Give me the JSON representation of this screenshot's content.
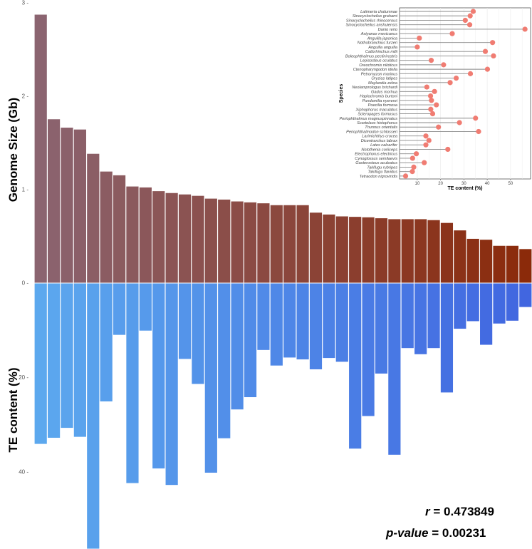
{
  "chart_data": {
    "type": "bar",
    "title": "",
    "top_panel": {
      "ylabel": "Genome Size (Gb)",
      "ylim": [
        0,
        3
      ],
      "yticks": [
        "0",
        "1",
        "2",
        "3"
      ],
      "color_start": "#8B6470",
      "color_end": "#8B2A0A"
    },
    "bottom_panel": {
      "ylabel": "TE content (%)",
      "ylim": [
        0,
        57
      ],
      "yticks": [
        "0",
        "20",
        "40"
      ],
      "color_start": "#5CA8EE",
      "color_end": "#4166E0"
    },
    "categories": [
      "Latimeria chalumnae",
      "Sinocyclocheilus grahami",
      "Sinocyclocheilus rhinocerous",
      "Sinocyclocheilus anshuiensis",
      "Danio rerio",
      "Astyanax mexicanus",
      "Anguilla japonica",
      "Nothobranchius furzeri",
      "Anguilla anguilla",
      "Callorhinchus milii",
      "Boleophthalmus pectinirostris",
      "Lepisosteus oculatus",
      "Oreochromis niloticus",
      "Ctenopharyngodon idella",
      "Petromyzon marinus",
      "Oryzias latipes",
      "Maylandia zebra",
      "Neolamprologus brichardi",
      "Gadus morhua",
      "Haplochromis burtoni",
      "Pundamilia nyererei",
      "Poecilia formosa",
      "Xiphophorus maculatus",
      "Scleropages formosus",
      "Periophthalmus magnuspinnatus",
      "Scartelaos histophorus",
      "Thunnus orientalis",
      "Periophthalmodon schlosseri",
      "Larimichthys crocea",
      "Dicentrarchus labrax",
      "Lates calcarifer",
      "Notothenia coriiceps",
      "Electrophorus electricus",
      "Cynoglossus semilaevis",
      "Gasterosteus aculeatus",
      "Takifugu rubripes",
      "Takifugu flavidus",
      "Tetraodon nigroviridis"
    ],
    "series": [
      {
        "name": "Genome Size (Gb)",
        "values": [
          2.87,
          1.75,
          1.66,
          1.64,
          1.38,
          1.19,
          1.15,
          1.03,
          1.02,
          0.98,
          0.96,
          0.945,
          0.93,
          0.9,
          0.89,
          0.87,
          0.86,
          0.85,
          0.83,
          0.83,
          0.83,
          0.75,
          0.73,
          0.71,
          0.705,
          0.7,
          0.69,
          0.68,
          0.68,
          0.68,
          0.67,
          0.64,
          0.56,
          0.47,
          0.46,
          0.395,
          0.395,
          0.36
        ]
      },
      {
        "name": "TE content (%)",
        "values": [
          34.0,
          32.7,
          30.6,
          32.5,
          56.2,
          25.0,
          10.9,
          42.3,
          10.0,
          39.2,
          42.7,
          16.0,
          21.3,
          40.1,
          32.8,
          26.7,
          24.1,
          14.1,
          17.4,
          15.7,
          16.1,
          18.2,
          15.8,
          16.6,
          35.0,
          28.1,
          19.1,
          36.3,
          13.7,
          15.0,
          13.7,
          23.1,
          9.6,
          8.0,
          13.0,
          8.5,
          7.9,
          5.0
        ]
      }
    ],
    "inset": {
      "type": "lollipop",
      "ylabel": "Species",
      "xlabel": "TE content (%)",
      "xticks": [
        "10",
        "20",
        "30",
        "40",
        "50"
      ],
      "xlim": [
        2.4,
        58.6
      ],
      "point_color": "#F07C72"
    },
    "annotation": {
      "r_label": "r",
      "r_value": "= 0.473849",
      "p_label": "p-value",
      "p_value": "= 0.00231"
    }
  }
}
